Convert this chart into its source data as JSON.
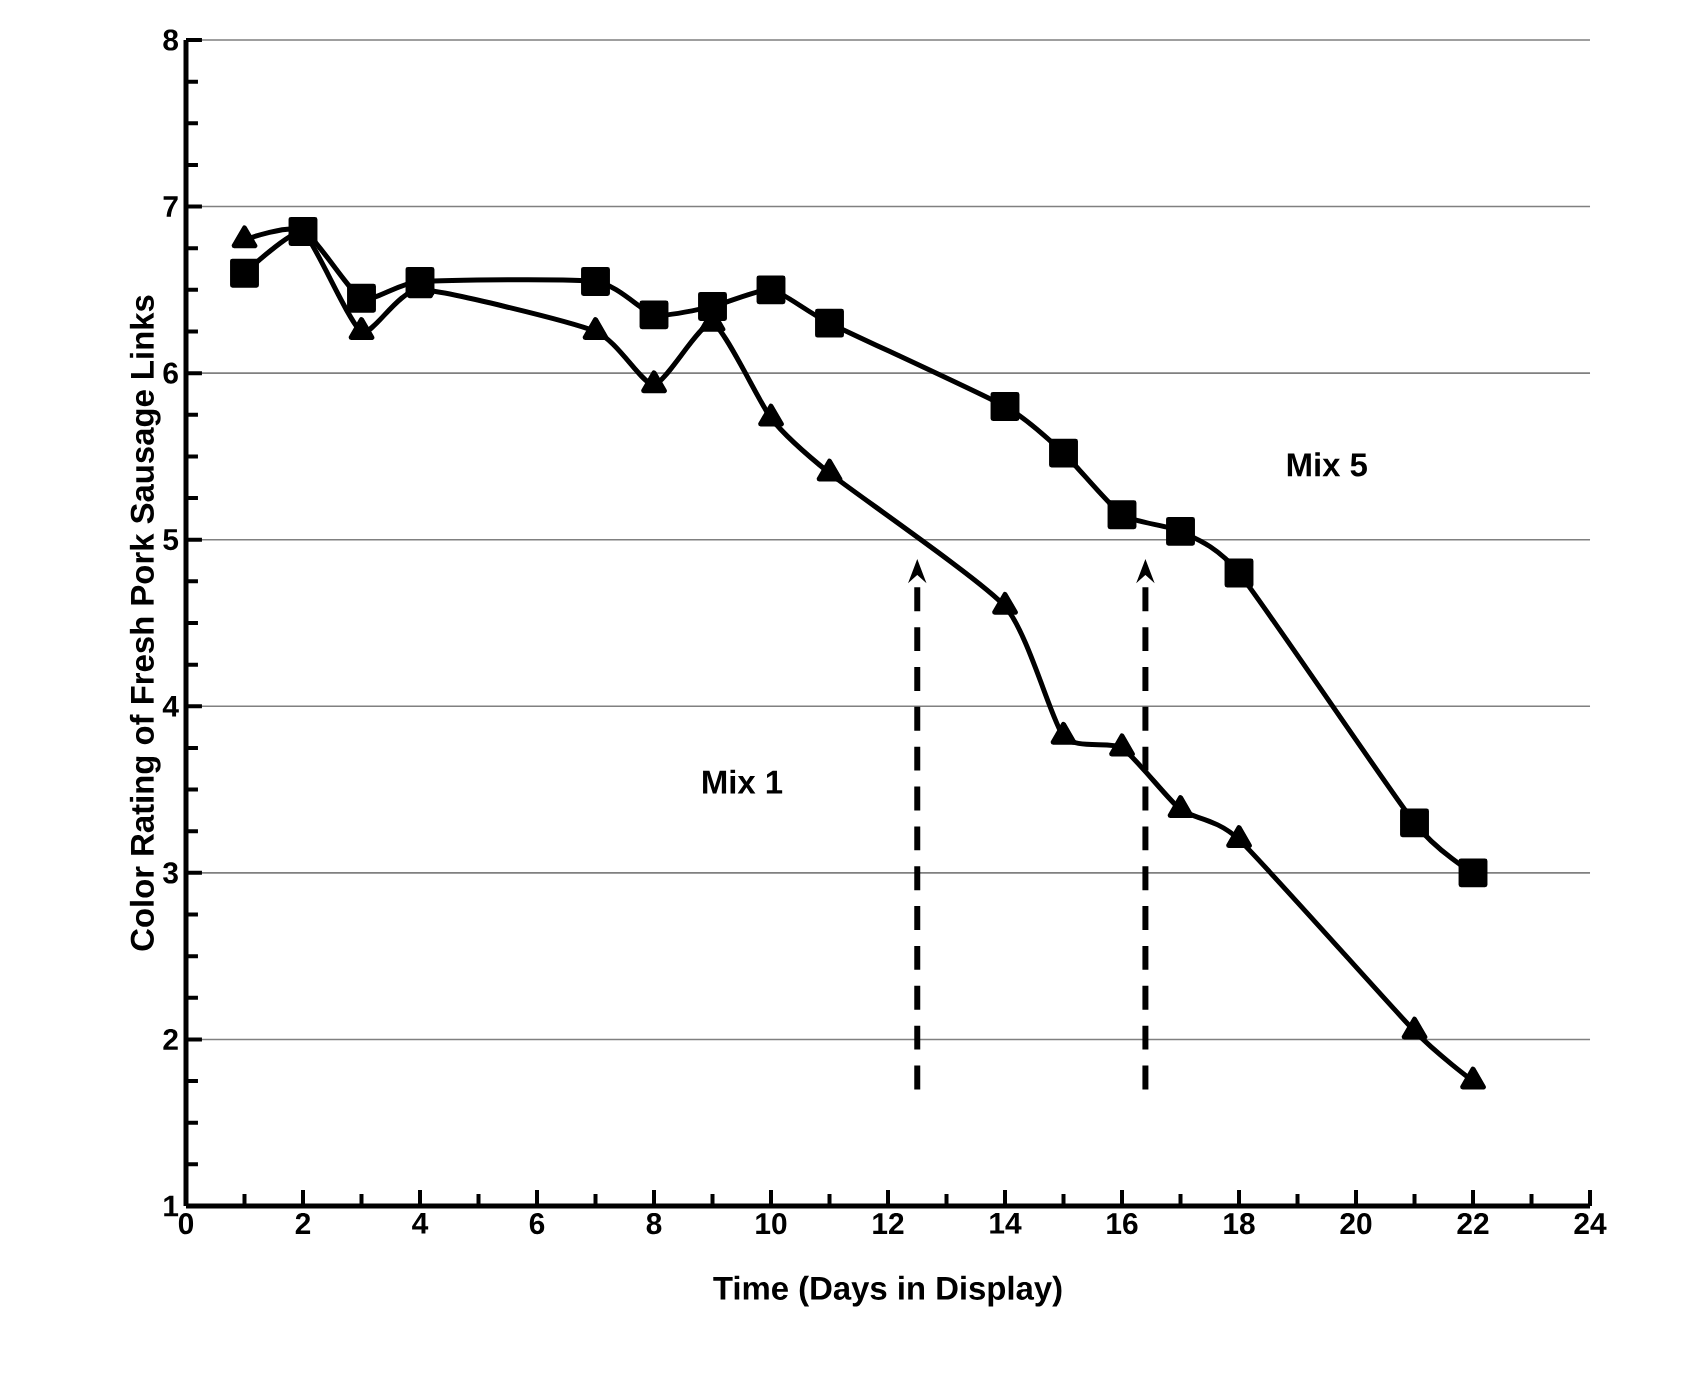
{
  "chart_data": {
    "type": "line",
    "xlabel": "Time (Days in Display)",
    "ylabel": "Color Rating of Fresh Pork Sausage Links",
    "x": [
      1,
      2,
      3,
      4,
      7,
      8,
      9,
      10,
      11,
      14,
      15,
      16,
      17,
      18,
      21,
      22
    ],
    "series": [
      {
        "color": "#000000",
        "marker": "square",
        "values": [
          6.6,
          6.85,
          6.45,
          6.55,
          6.55,
          6.35,
          6.4,
          6.5,
          6.3,
          5.8,
          5.52,
          5.15,
          5.05,
          4.8,
          3.3,
          3.0
        ]
      },
      {
        "color": "#000000",
        "marker": "triangle",
        "values": [
          6.8,
          6.85,
          6.25,
          6.5,
          6.25,
          5.93,
          6.3,
          5.73,
          5.4,
          4.6,
          3.82,
          3.75,
          3.38,
          3.2,
          2.05,
          1.75
        ]
      }
    ],
    "xlim": [
      0,
      24
    ],
    "xticks": [
      0,
      2,
      4,
      6,
      8,
      10,
      12,
      14,
      16,
      18,
      20,
      22,
      24
    ],
    "ylim": [
      1,
      8
    ],
    "yticks": [
      1,
      2,
      3,
      4,
      5,
      6,
      7,
      8
    ],
    "annotations": [
      "Mix 5",
      "Mix 1"
    ],
    "grid": "y",
    "line_style": "solid",
    "ref_lines": [
      {
        "axis": "x",
        "value": 12.5,
        "line_style": "dashed"
      },
      {
        "axis": "x",
        "value": 16.4,
        "line_style": "dashed"
      }
    ]
  }
}
